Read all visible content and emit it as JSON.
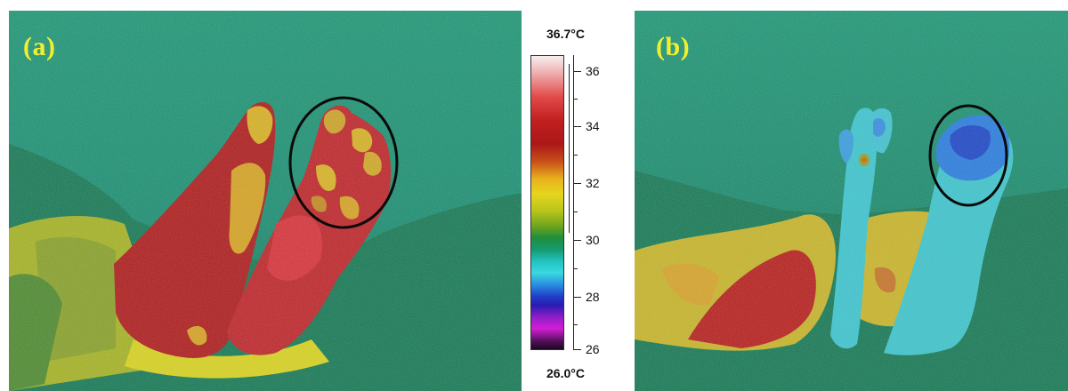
{
  "panels": [
    {
      "label": "(a)",
      "name": "panel-a"
    },
    {
      "label": "(b)",
      "name": "panel-b"
    }
  ],
  "scale": {
    "max_label": "36.7°C",
    "min_label": "26.0°C",
    "ticks": [
      "36",
      "34",
      "32",
      "30",
      "28",
      "26"
    ]
  }
}
